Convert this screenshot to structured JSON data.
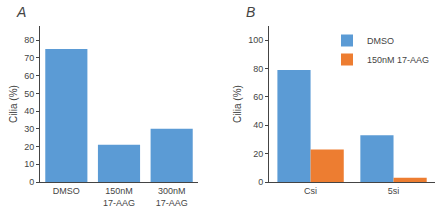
{
  "chart_data": [
    {
      "type": "bar",
      "title": "A",
      "categories": [
        "DMSO",
        "150nM\n17-AAG",
        "300nM\n17-AAG"
      ],
      "values": [
        75,
        21,
        30
      ],
      "color": "#5B9BD5",
      "ylabel": "Cilia (%)",
      "ylim": [
        0,
        88
      ],
      "yticks": [
        0,
        10,
        20,
        30,
        40,
        50,
        60,
        70,
        80
      ],
      "grid": false
    },
    {
      "type": "bar",
      "title": "B",
      "categories": [
        "Csi",
        "5si"
      ],
      "series": [
        {
          "name": "DMSO",
          "color": "#5B9BD5",
          "values": [
            79,
            33
          ]
        },
        {
          "name": "150nM 17-AAG",
          "color": "#ED7D31",
          "values": [
            23,
            3
          ]
        }
      ],
      "ylabel": "Cilia (%)",
      "ylim": [
        0,
        110
      ],
      "yticks": [
        0,
        20,
        40,
        60,
        80,
        100
      ],
      "grid": false,
      "legend": "upper right"
    }
  ]
}
